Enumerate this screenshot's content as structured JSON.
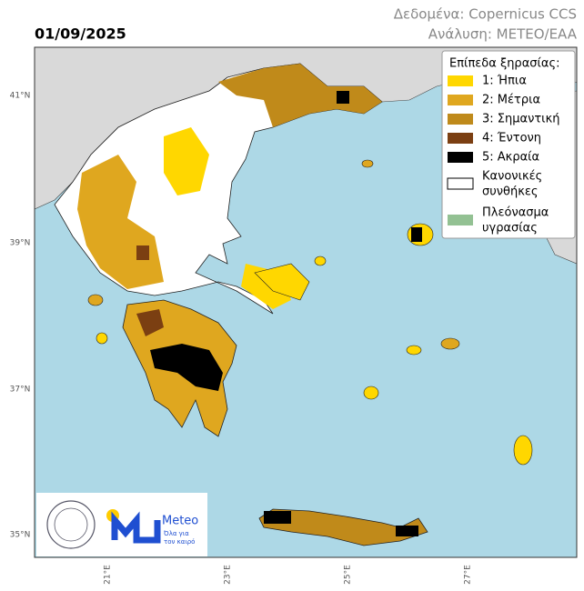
{
  "header": {
    "date": "01/09/2025",
    "source": "Δεδομένα: Copernicus CCS",
    "analysis": "Ανάλυση: METEO/EAA"
  },
  "legend": {
    "title": "Επίπεδα ξηρασίας:",
    "items": [
      {
        "label": "1:  Ήπια",
        "color": "#ffd700"
      },
      {
        "label": "2:  Μέτρια",
        "color": "#dfa71f"
      },
      {
        "label": "3:  Σημαντική",
        "color": "#bf8a1b"
      },
      {
        "label": "4:  Έντονη",
        "color": "#7b3f12"
      },
      {
        "label": "5:  Ακραία",
        "color": "#000000"
      },
      {
        "label": "Κανονικές συνθήκες",
        "lines": [
          "Κανονικές",
          "συνθήκες"
        ],
        "color": "#ffffff"
      },
      {
        "label": "Πλεόνασμα υγρασίας",
        "lines": [
          "Πλεόνασμα",
          "υγρασίας"
        ],
        "color": "#93c193"
      }
    ]
  },
  "axes": {
    "lat_labels": [
      "41°N",
      "39°N",
      "37°N",
      "35°N"
    ],
    "lon_labels": [
      "21°E",
      "23°E",
      "25°E",
      "27°E"
    ]
  },
  "logo": {
    "name": "Meteo",
    "tagline": [
      "Όλα για",
      "τον καιρό"
    ]
  }
}
